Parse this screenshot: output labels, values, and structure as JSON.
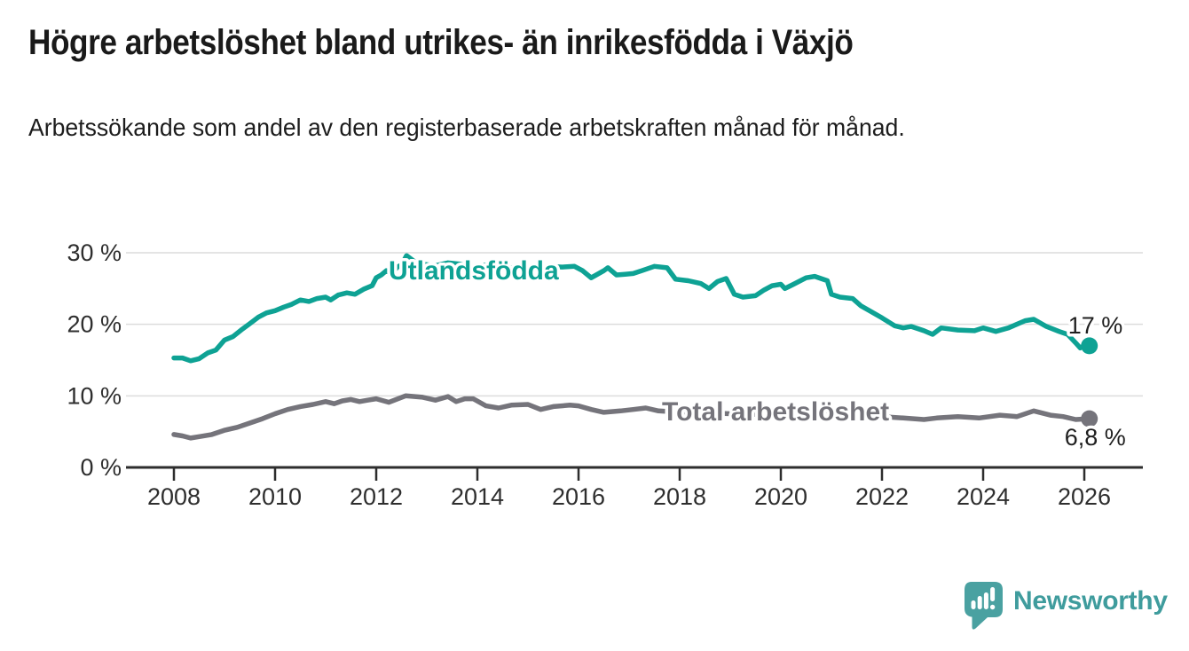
{
  "header": {
    "title": "Högre arbetslöshet bland utrikes- än inrikesfödda i Växjö",
    "subtitle": "Arbetssökande som andel av den registerbaserade arbetskraften månad för månad."
  },
  "logo": {
    "wordmark": "Newsworthy"
  },
  "colors": {
    "accent_teal": "#0ea294",
    "series_gray": "#75747b",
    "grid": "#dcdcdc",
    "axis": "#2d2d2d",
    "axis_text": "#2e2e2e",
    "value_text": "#1f1f1f",
    "logo_bubble": "#4aa1a1",
    "logo_text": "#3f9c9d"
  },
  "chart_data": {
    "type": "line",
    "title": "Högre arbetslöshet bland utrikes- än inrikesfödda i Växjö",
    "xlabel": "",
    "ylabel": "",
    "x_unit": "year (monthly series)",
    "y_unit": "percent of register-based labour force",
    "xticks": [
      2008,
      2010,
      2012,
      2014,
      2016,
      2018,
      2020,
      2022,
      2024,
      2026
    ],
    "yticks": [
      "0 %",
      "10 %",
      "20 %",
      "30 %"
    ],
    "ytick_values": [
      0,
      10,
      20,
      30
    ],
    "xlim": [
      2007.05,
      2027.15
    ],
    "ylim": [
      0,
      31.5
    ],
    "grid": "horizontal gridlines only",
    "legend": "inline labels attached to lines, end-point value labels",
    "series": [
      {
        "name": "Utlandsfödda",
        "slug": "utlandsfodda",
        "color": "#0ea294",
        "end_label": "17 %",
        "end_value": 17,
        "points": [
          [
            2008.0,
            15.3
          ],
          [
            2008.17,
            15.3
          ],
          [
            2008.33,
            14.9
          ],
          [
            2008.5,
            15.2
          ],
          [
            2008.67,
            16.0
          ],
          [
            2008.83,
            16.4
          ],
          [
            2009.0,
            17.8
          ],
          [
            2009.17,
            18.3
          ],
          [
            2009.33,
            19.2
          ],
          [
            2009.5,
            20.1
          ],
          [
            2009.67,
            21.0
          ],
          [
            2009.83,
            21.6
          ],
          [
            2010.0,
            21.9
          ],
          [
            2010.17,
            22.4
          ],
          [
            2010.33,
            22.8
          ],
          [
            2010.5,
            23.4
          ],
          [
            2010.67,
            23.2
          ],
          [
            2010.83,
            23.6
          ],
          [
            2011.0,
            23.8
          ],
          [
            2011.1,
            23.4
          ],
          [
            2011.25,
            24.1
          ],
          [
            2011.42,
            24.4
          ],
          [
            2011.58,
            24.2
          ],
          [
            2011.75,
            24.9
          ],
          [
            2011.92,
            25.4
          ],
          [
            2012.0,
            26.5
          ],
          [
            2012.1,
            26.9
          ],
          [
            2012.2,
            27.5
          ],
          [
            2012.3,
            27.1
          ],
          [
            2012.42,
            28.0
          ],
          [
            2012.5,
            28.3
          ],
          [
            2012.6,
            29.6
          ],
          [
            2012.75,
            28.8
          ],
          [
            2012.92,
            28.4
          ],
          [
            2013.17,
            28.2
          ],
          [
            2013.42,
            28.6
          ],
          [
            2013.67,
            28.4
          ],
          [
            2013.92,
            28.0
          ],
          [
            2014.17,
            28.3
          ],
          [
            2014.42,
            28.1
          ],
          [
            2014.67,
            27.9
          ],
          [
            2014.92,
            27.7
          ],
          [
            2015.17,
            27.9
          ],
          [
            2015.42,
            28.1
          ],
          [
            2015.67,
            28.0
          ],
          [
            2015.92,
            28.1
          ],
          [
            2016.08,
            27.5
          ],
          [
            2016.25,
            26.5
          ],
          [
            2016.5,
            27.5
          ],
          [
            2016.58,
            27.9
          ],
          [
            2016.75,
            26.9
          ],
          [
            2016.92,
            27.0
          ],
          [
            2017.08,
            27.1
          ],
          [
            2017.25,
            27.5
          ],
          [
            2017.5,
            28.1
          ],
          [
            2017.75,
            27.9
          ],
          [
            2017.92,
            26.3
          ],
          [
            2018.17,
            26.1
          ],
          [
            2018.42,
            25.7
          ],
          [
            2018.58,
            25.0
          ],
          [
            2018.75,
            26.0
          ],
          [
            2018.92,
            26.4
          ],
          [
            2019.08,
            24.2
          ],
          [
            2019.25,
            23.8
          ],
          [
            2019.5,
            24.0
          ],
          [
            2019.67,
            24.8
          ],
          [
            2019.83,
            25.4
          ],
          [
            2020.0,
            25.6
          ],
          [
            2020.08,
            25.0
          ],
          [
            2020.25,
            25.6
          ],
          [
            2020.5,
            26.5
          ],
          [
            2020.67,
            26.7
          ],
          [
            2020.92,
            26.1
          ],
          [
            2021.0,
            24.2
          ],
          [
            2021.17,
            23.8
          ],
          [
            2021.42,
            23.6
          ],
          [
            2021.58,
            22.6
          ],
          [
            2021.75,
            21.9
          ],
          [
            2022.0,
            20.9
          ],
          [
            2022.25,
            19.8
          ],
          [
            2022.42,
            19.5
          ],
          [
            2022.58,
            19.7
          ],
          [
            2022.83,
            19.1
          ],
          [
            2023.0,
            18.6
          ],
          [
            2023.17,
            19.5
          ],
          [
            2023.5,
            19.2
          ],
          [
            2023.83,
            19.1
          ],
          [
            2024.0,
            19.5
          ],
          [
            2024.25,
            19.0
          ],
          [
            2024.5,
            19.5
          ],
          [
            2024.83,
            20.5
          ],
          [
            2025.0,
            20.7
          ],
          [
            2025.25,
            19.7
          ],
          [
            2025.5,
            19.0
          ],
          [
            2025.67,
            18.6
          ],
          [
            2025.83,
            17.4
          ],
          [
            2025.92,
            16.7
          ],
          [
            2026.05,
            17.2
          ],
          [
            2026.1,
            17.0
          ]
        ]
      },
      {
        "name": "Total arbetslöshet",
        "slug": "total-arbetsloshet",
        "color": "#75747b",
        "end_label": "6,8 %",
        "end_value": 6.8,
        "points": [
          [
            2008.0,
            4.6
          ],
          [
            2008.17,
            4.4
          ],
          [
            2008.33,
            4.1
          ],
          [
            2008.5,
            4.3
          ],
          [
            2008.75,
            4.6
          ],
          [
            2009.0,
            5.2
          ],
          [
            2009.25,
            5.6
          ],
          [
            2009.5,
            6.2
          ],
          [
            2009.75,
            6.8
          ],
          [
            2010.0,
            7.5
          ],
          [
            2010.25,
            8.1
          ],
          [
            2010.5,
            8.5
          ],
          [
            2010.75,
            8.8
          ],
          [
            2011.0,
            9.2
          ],
          [
            2011.17,
            8.9
          ],
          [
            2011.33,
            9.3
          ],
          [
            2011.5,
            9.5
          ],
          [
            2011.67,
            9.2
          ],
          [
            2011.83,
            9.4
          ],
          [
            2012.0,
            9.6
          ],
          [
            2012.25,
            9.1
          ],
          [
            2012.58,
            10.0
          ],
          [
            2012.92,
            9.8
          ],
          [
            2013.17,
            9.4
          ],
          [
            2013.42,
            9.9
          ],
          [
            2013.58,
            9.2
          ],
          [
            2013.75,
            9.6
          ],
          [
            2013.92,
            9.6
          ],
          [
            2014.17,
            8.6
          ],
          [
            2014.42,
            8.3
          ],
          [
            2014.67,
            8.7
          ],
          [
            2015.0,
            8.8
          ],
          [
            2015.25,
            8.1
          ],
          [
            2015.5,
            8.5
          ],
          [
            2015.83,
            8.7
          ],
          [
            2016.0,
            8.6
          ],
          [
            2016.25,
            8.1
          ],
          [
            2016.5,
            7.7
          ],
          [
            2016.83,
            7.9
          ],
          [
            2017.08,
            8.1
          ],
          [
            2017.33,
            8.3
          ],
          [
            2017.58,
            7.9
          ],
          [
            2017.83,
            7.8
          ],
          [
            2018.25,
            7.7
          ],
          [
            2018.67,
            7.6
          ],
          [
            2019.0,
            7.5
          ],
          [
            2019.5,
            7.4
          ],
          [
            2020.0,
            7.7
          ],
          [
            2020.42,
            8.2
          ],
          [
            2020.83,
            8.0
          ],
          [
            2021.25,
            7.7
          ],
          [
            2021.67,
            7.4
          ],
          [
            2022.0,
            7.1
          ],
          [
            2022.42,
            6.9
          ],
          [
            2022.83,
            6.7
          ],
          [
            2023.08,
            6.9
          ],
          [
            2023.5,
            7.1
          ],
          [
            2023.92,
            6.9
          ],
          [
            2024.33,
            7.3
          ],
          [
            2024.67,
            7.1
          ],
          [
            2025.0,
            7.9
          ],
          [
            2025.33,
            7.3
          ],
          [
            2025.58,
            7.1
          ],
          [
            2025.83,
            6.7
          ],
          [
            2026.1,
            6.8
          ]
        ]
      }
    ]
  }
}
